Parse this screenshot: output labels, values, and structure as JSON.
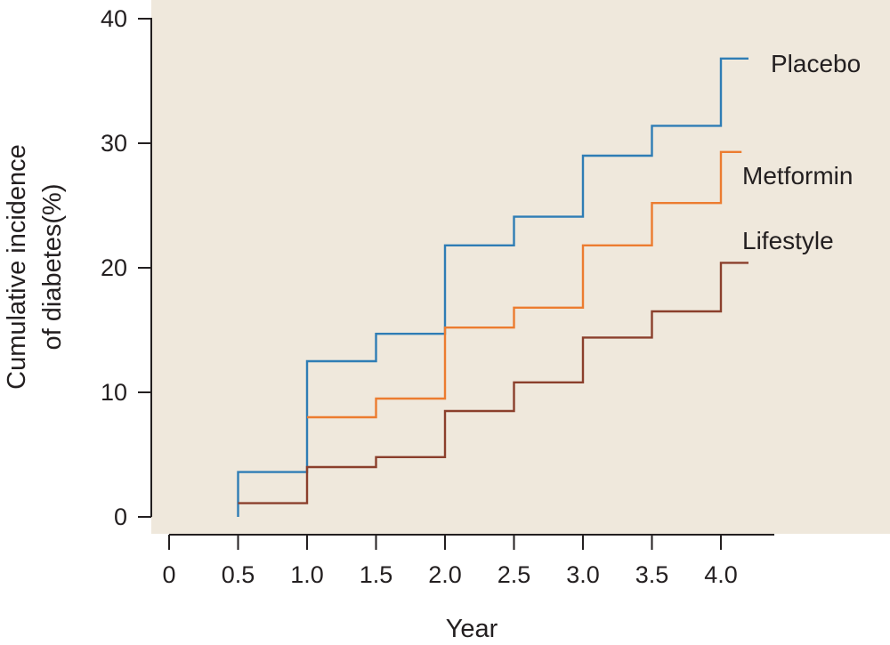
{
  "chart_data": {
    "type": "line",
    "step": true,
    "xlabel": "Year",
    "ylabel_lines": [
      "Cumulative incidence",
      "of diabetes(%)"
    ],
    "xlim": [
      0,
      4.5
    ],
    "ylim": [
      0,
      40
    ],
    "x_ticks": [
      {
        "value": 0,
        "label": "0"
      },
      {
        "value": 0.5,
        "label": "0.5"
      },
      {
        "value": 1.0,
        "label": "1.0"
      },
      {
        "value": 1.5,
        "label": "1.5"
      },
      {
        "value": 2.0,
        "label": "2.0"
      },
      {
        "value": 2.5,
        "label": "2.5"
      },
      {
        "value": 3.0,
        "label": "3.0"
      },
      {
        "value": 3.5,
        "label": "3.5"
      },
      {
        "value": 4.0,
        "label": "4.0"
      }
    ],
    "y_ticks": [
      {
        "value": 0,
        "label": "0"
      },
      {
        "value": 10,
        "label": "10"
      },
      {
        "value": 20,
        "label": "20"
      },
      {
        "value": 30,
        "label": "30"
      },
      {
        "value": 40,
        "label": "40"
      }
    ],
    "grid": false,
    "plot_background": "#efe8dc",
    "series": [
      {
        "name": "Placebo",
        "color": "#2f7db5",
        "x_end": 4.2,
        "steps": [
          {
            "x": 0.5,
            "y": 0
          },
          {
            "x": 0.5,
            "y": 3.6
          },
          {
            "x": 1.0,
            "y": 12.5
          },
          {
            "x": 1.5,
            "y": 14.7
          },
          {
            "x": 2.0,
            "y": 21.8
          },
          {
            "x": 2.5,
            "y": 24.1
          },
          {
            "x": 3.0,
            "y": 29.0
          },
          {
            "x": 3.5,
            "y": 31.4
          },
          {
            "x": 4.0,
            "y": 36.8
          }
        ]
      },
      {
        "name": "Metformin",
        "color": "#ec7c30",
        "x_end": 4.15,
        "steps": [
          {
            "x": 1.0,
            "y": 8.0
          },
          {
            "x": 1.5,
            "y": 9.5
          },
          {
            "x": 2.0,
            "y": 15.2
          },
          {
            "x": 2.5,
            "y": 16.8
          },
          {
            "x": 3.0,
            "y": 21.8
          },
          {
            "x": 3.5,
            "y": 25.2
          },
          {
            "x": 4.0,
            "y": 29.3
          }
        ]
      },
      {
        "name": "Lifestyle",
        "color": "#8b3f2c",
        "x_end": 4.2,
        "steps": [
          {
            "x": 0.5,
            "y": 1.1
          },
          {
            "x": 1.0,
            "y": 4.0
          },
          {
            "x": 1.5,
            "y": 4.8
          },
          {
            "x": 2.0,
            "y": 8.5
          },
          {
            "x": 2.5,
            "y": 10.8
          },
          {
            "x": 3.0,
            "y": 14.4
          },
          {
            "x": 3.5,
            "y": 16.5
          },
          {
            "x": 4.0,
            "y": 20.4
          }
        ]
      }
    ]
  }
}
